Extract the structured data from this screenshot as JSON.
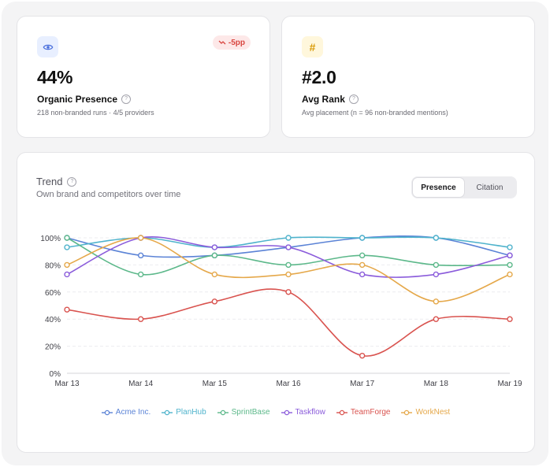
{
  "kpis": [
    {
      "value": "44%",
      "title": "Organic Presence",
      "subtitle": "218 non-branded runs · 4/5 providers",
      "badge": "-5pp",
      "icon": "eye-icon"
    },
    {
      "value": "#2.0",
      "title": "Avg Rank",
      "subtitle": "Avg placement (n = 96 non-branded mentions)",
      "icon": "hash-icon",
      "icon_glyph": "#"
    }
  ],
  "trend": {
    "title": "Trend",
    "subtitle": "Own brand and competitors over time",
    "toggle": [
      "Presence",
      "Citation"
    ],
    "active_toggle": "Presence"
  },
  "colors": {
    "badge_red": "#d9453f",
    "accent_blue": "#5b7bd5"
  },
  "chart_data": {
    "type": "line",
    "categories": [
      "Mar 13",
      "Mar 14",
      "Mar 15",
      "Mar 16",
      "Mar 17",
      "Mar 18",
      "Mar 19"
    ],
    "ylim": [
      0,
      100
    ],
    "yticks": [
      "0%",
      "20%",
      "40%",
      "60%",
      "80%",
      "100%"
    ],
    "ytick_values": [
      0,
      20,
      40,
      60,
      80,
      100
    ],
    "grid": true,
    "legend": "bottom-center",
    "series": [
      {
        "name": "Acme Inc.",
        "color": "#5b83d6",
        "values": [
          100,
          87,
          87,
          93,
          100,
          100,
          87
        ]
      },
      {
        "name": "PlanHub",
        "color": "#4fb3cc",
        "values": [
          93,
          100,
          93,
          100,
          100,
          100,
          93
        ]
      },
      {
        "name": "SprintBase",
        "color": "#5cb88a",
        "values": [
          100,
          73,
          87,
          80,
          87,
          80,
          80
        ]
      },
      {
        "name": "Taskflow",
        "color": "#8b5cdb",
        "values": [
          73,
          100,
          93,
          93,
          73,
          73,
          87
        ]
      },
      {
        "name": "TeamForge",
        "color": "#d9534f",
        "values": [
          47,
          40,
          53,
          60,
          13,
          40,
          40
        ]
      },
      {
        "name": "WorkNest",
        "color": "#e5a84a",
        "values": [
          80,
          100,
          73,
          73,
          80,
          53,
          73
        ]
      }
    ]
  }
}
